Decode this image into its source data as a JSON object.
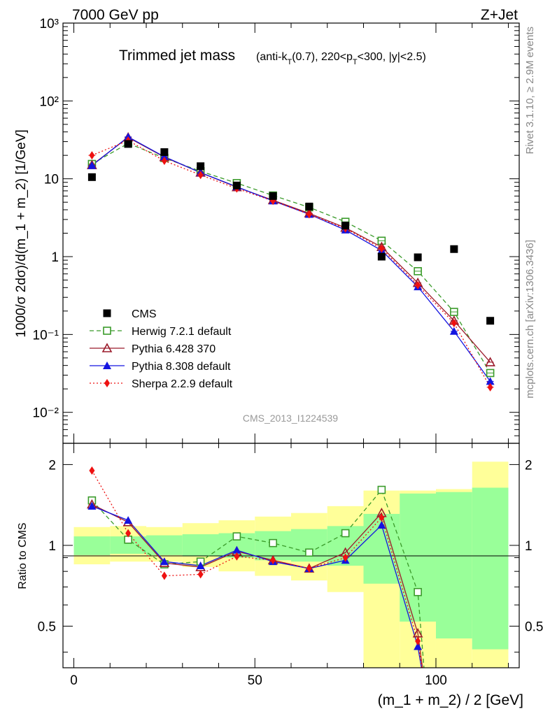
{
  "header": {
    "left": "7000 GeV pp",
    "right": "Z+Jet"
  },
  "side_labels": {
    "rivet": "Rivet 3.1.10, ≥ 2.9M events",
    "mcplots": "mcplots.cern.ch [arXiv:1306.3436]"
  },
  "watermark": "CMS_2013_I1224539",
  "chart_data": [
    {
      "type": "scatter",
      "title": "Trimmed jet mass",
      "subtitle": "(anti-kT(0.7), 220<pT<300, |y|<2.5)",
      "ylabel": "1000/σ 2dσ)/d(m_1 + m_2) [1/GeV]",
      "y_scale": "log",
      "xlim": [
        -3,
        123
      ],
      "ylim": [
        0.004,
        1000
      ],
      "y_ticks": [
        "10⁻²",
        "10⁻¹",
        "1",
        "10",
        "10²",
        "10³"
      ],
      "legend": "left",
      "x": [
        5,
        15,
        25,
        35,
        45,
        55,
        65,
        75,
        85,
        95,
        105,
        115
      ],
      "series": [
        {
          "name": "CMS",
          "color": "#000000",
          "marker": "square-filled",
          "line": "none",
          "values": [
            10.5,
            28.0,
            22.0,
            14.5,
            8.2,
            6.0,
            4.4,
            2.5,
            1.0,
            0.98,
            1.25,
            0.15
          ]
        },
        {
          "name": "Herwig 7.2.1 default",
          "color": "#3a9b2a",
          "marker": "square-open",
          "line": "dashed",
          "values": [
            15.5,
            28.5,
            18.5,
            12.5,
            8.8,
            6.1,
            4.3,
            2.8,
            1.6,
            0.65,
            0.195,
            0.032
          ]
        },
        {
          "name": "Pythia 6.428 370",
          "color": "#9b1b2b",
          "marker": "triangle-open",
          "line": "solid",
          "values": [
            15.0,
            34.0,
            19.0,
            12.0,
            7.8,
            5.3,
            3.6,
            2.35,
            1.33,
            0.46,
            0.15,
            0.044
          ]
        },
        {
          "name": "Pythia 8.308 default",
          "color": "#1414e0",
          "marker": "triangle-filled",
          "line": "solid",
          "values": [
            14.8,
            34.5,
            19.2,
            12.0,
            7.9,
            5.2,
            3.5,
            2.2,
            1.2,
            0.41,
            0.11,
            0.025
          ]
        },
        {
          "name": "Sherpa 2.2.9 default",
          "color": "#ee1111",
          "marker": "diamond-filled",
          "line": "dotted",
          "values": [
            20.0,
            31.0,
            17.0,
            11.2,
            7.5,
            5.2,
            3.5,
            2.3,
            1.27,
            0.43,
            0.14,
            0.021
          ]
        }
      ]
    },
    {
      "type": "scatter",
      "ylabel": "Ratio to CMS",
      "xlabel": "(m_1 + m_2) / 2 [GeV]",
      "y_scale": "log",
      "xlim": [
        -3,
        123
      ],
      "ylim": [
        0.35,
        2.4
      ],
      "y_ticks": [
        "0.5",
        "1",
        "2"
      ],
      "x_ticks": [
        "0",
        "50",
        "100"
      ],
      "bands": {
        "edges": [
          0,
          10,
          20,
          30,
          40,
          50,
          60,
          70,
          80,
          90,
          100,
          110,
          120
        ],
        "yellow_lo": [
          0.85,
          0.87,
          0.87,
          0.83,
          0.8,
          0.77,
          0.74,
          0.67,
          0.35,
          0.35,
          0.35,
          0.35
        ],
        "yellow_hi": [
          1.17,
          1.18,
          1.17,
          1.21,
          1.24,
          1.28,
          1.32,
          1.4,
          1.6,
          1.6,
          1.62,
          2.05
        ],
        "green_lo": [
          0.92,
          0.93,
          0.92,
          0.91,
          0.9,
          0.88,
          0.87,
          0.84,
          0.72,
          0.52,
          0.45,
          0.41
        ],
        "green_hi": [
          1.08,
          1.08,
          1.09,
          1.1,
          1.11,
          1.13,
          1.15,
          1.18,
          1.31,
          1.56,
          1.58,
          1.64
        ]
      },
      "series": [
        {
          "name": "Herwig 7.2.1 default",
          "values": [
            1.47,
            1.05,
            0.85,
            0.87,
            1.08,
            1.02,
            0.94,
            1.11,
            1.61,
            0.67
          ]
        },
        {
          "name": "Pythia 6.428 370",
          "values": [
            1.42,
            1.22,
            0.86,
            0.83,
            0.95,
            0.88,
            0.82,
            0.94,
            1.32,
            0.47
          ]
        },
        {
          "name": "Pythia 8.308 default",
          "values": [
            1.4,
            1.24,
            0.87,
            0.84,
            0.96,
            0.87,
            0.82,
            0.88,
            1.19,
            0.42
          ]
        },
        {
          "name": "Sherpa 2.2.9 default",
          "values": [
            1.9,
            1.11,
            0.77,
            0.78,
            0.91,
            0.88,
            0.82,
            0.9,
            1.27,
            0.44
          ]
        }
      ]
    }
  ]
}
